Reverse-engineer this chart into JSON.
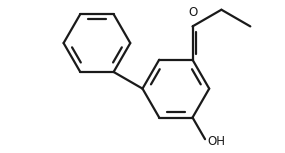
{
  "bg_color": "#ffffff",
  "line_color": "#1a1a1a",
  "line_width": 1.6,
  "fig_width": 2.85,
  "fig_height": 1.53,
  "dpi": 100,
  "label_O": "O",
  "label_OH": "OH",
  "font_size": 8.5
}
